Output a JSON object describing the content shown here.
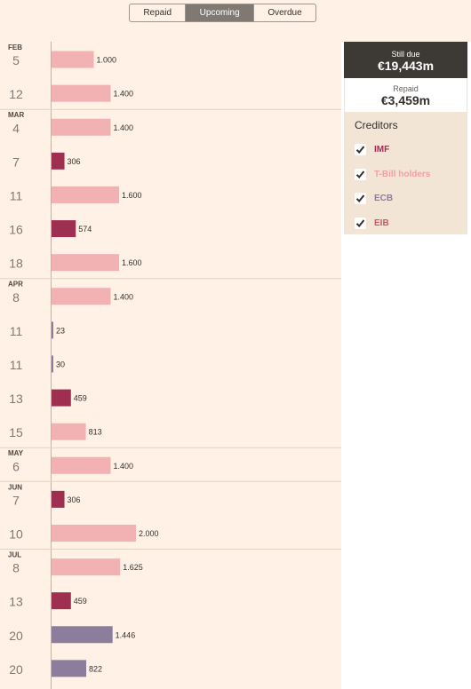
{
  "tabs": [
    {
      "label": "Repaid",
      "active": false
    },
    {
      "label": "Upcoming",
      "active": true
    },
    {
      "label": "Overdue",
      "active": false
    }
  ],
  "summary": {
    "still_due_label": "Still due",
    "still_due_value": "€19,443m",
    "repaid_label": "Repaid",
    "repaid_value": "€3,459m"
  },
  "legend": {
    "title": "Creditors",
    "items": [
      {
        "label": "IMF",
        "color": "#9e2f50",
        "checked": true
      },
      {
        "label": "T-Bill holders",
        "color": "#f2a0a2",
        "checked": true
      },
      {
        "label": "ECB",
        "color": "#8d7d9c",
        "checked": true
      },
      {
        "label": "EIB",
        "color": "#c25a6b",
        "checked": true
      }
    ]
  },
  "chart_data": {
    "type": "bar",
    "orientation": "horizontal",
    "unit": "€m",
    "xlim": [
      0,
      2000
    ],
    "series_colors": {
      "IMF": "#9e2f50",
      "T-Bill holders": "#f2b1b2",
      "ECB": "#8d7d9c",
      "EIB": "#c25a6b"
    },
    "rows": [
      {
        "month": "FEB",
        "day": "5",
        "creditor": "T-Bill holders",
        "value": 1000,
        "label": "1.000"
      },
      {
        "month": "",
        "day": "12",
        "creditor": "T-Bill holders",
        "value": 1400,
        "label": "1.400"
      },
      {
        "month": "MAR",
        "day": "4",
        "creditor": "T-Bill holders",
        "value": 1400,
        "label": "1.400"
      },
      {
        "month": "",
        "day": "7",
        "creditor": "IMF",
        "value": 306,
        "label": "306"
      },
      {
        "month": "",
        "day": "11",
        "creditor": "T-Bill holders",
        "value": 1600,
        "label": "1.600"
      },
      {
        "month": "",
        "day": "16",
        "creditor": "IMF",
        "value": 574,
        "label": "574"
      },
      {
        "month": "",
        "day": "18",
        "creditor": "T-Bill holders",
        "value": 1600,
        "label": "1.600"
      },
      {
        "month": "APR",
        "day": "8",
        "creditor": "T-Bill holders",
        "value": 1400,
        "label": "1.400"
      },
      {
        "month": "",
        "day": "11",
        "creditor": "ECB",
        "value": 23,
        "label": "23"
      },
      {
        "month": "",
        "day": "11",
        "creditor": "ECB",
        "value": 30,
        "label": "30"
      },
      {
        "month": "",
        "day": "13",
        "creditor": "IMF",
        "value": 459,
        "label": "459"
      },
      {
        "month": "",
        "day": "15",
        "creditor": "T-Bill holders",
        "value": 813,
        "label": "813"
      },
      {
        "month": "MAY",
        "day": "6",
        "creditor": "T-Bill holders",
        "value": 1400,
        "label": "1.400"
      },
      {
        "month": "JUN",
        "day": "7",
        "creditor": "IMF",
        "value": 306,
        "label": "306"
      },
      {
        "month": "",
        "day": "10",
        "creditor": "T-Bill holders",
        "value": 2000,
        "label": "2.000"
      },
      {
        "month": "JUL",
        "day": "8",
        "creditor": "T-Bill holders",
        "value": 1625,
        "label": "1.625"
      },
      {
        "month": "",
        "day": "13",
        "creditor": "IMF",
        "value": 459,
        "label": "459"
      },
      {
        "month": "",
        "day": "20",
        "creditor": "ECB",
        "value": 1446,
        "label": "1.446"
      },
      {
        "month": "",
        "day": "20",
        "creditor": "ECB",
        "value": 822,
        "label": "822"
      }
    ]
  }
}
